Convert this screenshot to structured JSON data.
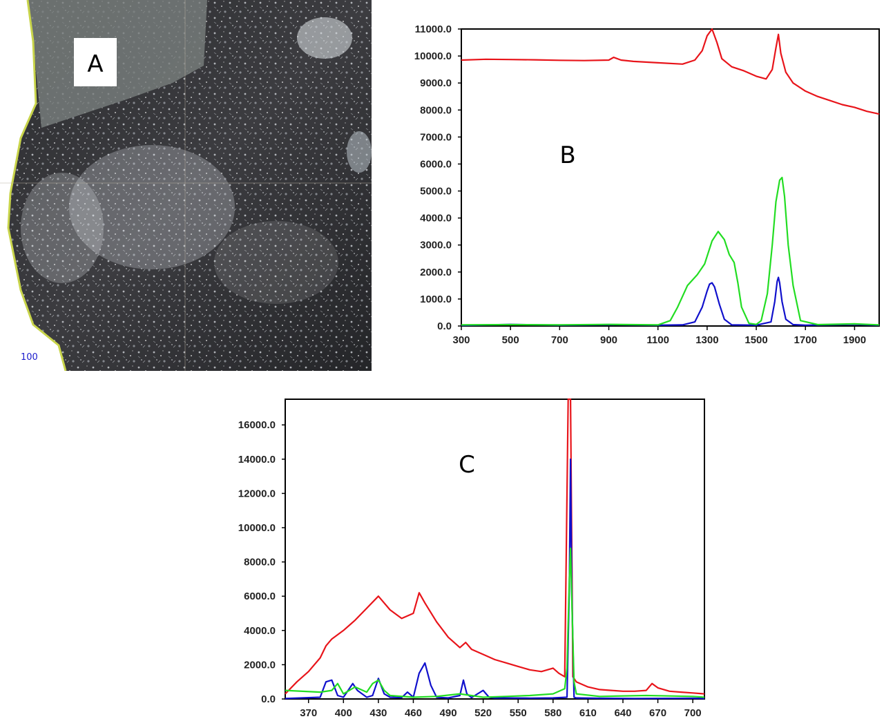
{
  "panels": {
    "photo": {
      "letter": "A",
      "scale_label": "100"
    },
    "spectrum_b": {
      "letter": "B"
    },
    "spectrum_c": {
      "letter": "C"
    }
  },
  "colors": {
    "series1": "#e8141a",
    "series2": "#1010cc",
    "series3": "#22dd22",
    "frame": "#000000"
  },
  "chart_data": [
    {
      "type": "line",
      "title": "",
      "xlabel": "",
      "ylabel": "",
      "xlim": [
        300,
        2000
      ],
      "ylim": [
        0,
        11000
      ],
      "x_ticks": [
        300,
        500,
        700,
        900,
        1100,
        1300,
        1500,
        1700,
        1900
      ],
      "y_ticks": [
        "0.0",
        "1000.0",
        "2000.0",
        "3000.0",
        "4000.0",
        "5000.0",
        "6000.0",
        "7000.0",
        "8000.0",
        "9000.0",
        "10000.0",
        "11000.0"
      ],
      "y_tick_values": [
        0,
        1000,
        2000,
        3000,
        4000,
        5000,
        6000,
        7000,
        8000,
        9000,
        10000,
        11000
      ],
      "series": [
        {
          "color": "#e8141a",
          "x": [
            300,
            400,
            500,
            600,
            700,
            800,
            900,
            920,
            950,
            1000,
            1100,
            1200,
            1250,
            1280,
            1300,
            1320,
            1340,
            1360,
            1400,
            1450,
            1500,
            1540,
            1565,
            1580,
            1590,
            1600,
            1620,
            1650,
            1700,
            1750,
            1800,
            1850,
            1900,
            1950,
            2000
          ],
          "y": [
            9850,
            9880,
            9870,
            9860,
            9840,
            9830,
            9850,
            9950,
            9850,
            9800,
            9750,
            9700,
            9850,
            10200,
            10750,
            11000,
            10500,
            9900,
            9600,
            9450,
            9250,
            9150,
            9500,
            10300,
            10800,
            10100,
            9400,
            9000,
            8700,
            8500,
            8350,
            8200,
            8100,
            7950,
            7850
          ]
        },
        {
          "color": "#1010cc",
          "x": [
            300,
            500,
            700,
            900,
            1100,
            1200,
            1250,
            1280,
            1300,
            1310,
            1320,
            1330,
            1350,
            1370,
            1400,
            1500,
            1560,
            1575,
            1585,
            1590,
            1595,
            1605,
            1620,
            1650,
            1700,
            1900,
            2000
          ],
          "y": [
            20,
            60,
            30,
            50,
            30,
            40,
            150,
            700,
            1300,
            1550,
            1600,
            1450,
            800,
            250,
            40,
            30,
            150,
            900,
            1650,
            1800,
            1600,
            900,
            250,
            50,
            30,
            60,
            30
          ]
        },
        {
          "color": "#22dd22",
          "x": [
            300,
            500,
            700,
            900,
            1100,
            1150,
            1180,
            1220,
            1260,
            1290,
            1320,
            1345,
            1370,
            1390,
            1410,
            1425,
            1440,
            1470,
            1500,
            1520,
            1545,
            1565,
            1580,
            1595,
            1605,
            1615,
            1630,
            1650,
            1680,
            1750,
            1900,
            2000
          ],
          "y": [
            40,
            50,
            40,
            60,
            40,
            200,
            700,
            1500,
            1900,
            2300,
            3150,
            3500,
            3200,
            2650,
            2350,
            1600,
            700,
            100,
            60,
            200,
            1200,
            3000,
            4600,
            5400,
            5500,
            4800,
            3000,
            1500,
            200,
            50,
            80,
            40
          ]
        }
      ]
    },
    {
      "type": "line",
      "title": "",
      "xlabel": "",
      "ylabel": "",
      "xlim": [
        350,
        710
      ],
      "ylim": [
        0,
        17500
      ],
      "x_ticks": [
        370,
        400,
        430,
        460,
        490,
        520,
        550,
        580,
        610,
        640,
        670,
        700
      ],
      "y_ticks": [
        "0.0",
        "2000.0",
        "4000.0",
        "6000.0",
        "8000.0",
        "10000.0",
        "12000.0",
        "14000.0",
        "16000.0"
      ],
      "y_tick_values": [
        0,
        2000,
        4000,
        6000,
        8000,
        10000,
        12000,
        14000,
        16000
      ],
      "series": [
        {
          "color": "#e8141a",
          "x": [
            350,
            360,
            370,
            380,
            385,
            390,
            400,
            410,
            420,
            430,
            440,
            450,
            460,
            465,
            470,
            480,
            490,
            500,
            505,
            510,
            520,
            530,
            540,
            550,
            560,
            570,
            580,
            585,
            590,
            593,
            595,
            597,
            600,
            610,
            620,
            630,
            640,
            650,
            660,
            665,
            670,
            680,
            690,
            700,
            710
          ],
          "y": [
            300,
            1000,
            1600,
            2400,
            3100,
            3500,
            4000,
            4600,
            5300,
            6000,
            5200,
            4700,
            5000,
            6200,
            5600,
            4500,
            3600,
            3000,
            3300,
            2900,
            2600,
            2300,
            2100,
            1900,
            1700,
            1600,
            1800,
            1500,
            1300,
            17500,
            17500,
            1300,
            1000,
            700,
            550,
            500,
            450,
            450,
            500,
            900,
            650,
            450,
            400,
            350,
            300
          ]
        },
        {
          "color": "#1010cc",
          "x": [
            350,
            380,
            385,
            390,
            395,
            400,
            408,
            412,
            420,
            425,
            430,
            435,
            440,
            450,
            455,
            460,
            465,
            470,
            475,
            480,
            490,
            500,
            503,
            506,
            510,
            520,
            525,
            530,
            560,
            580,
            592,
            594,
            595,
            596,
            598,
            600,
            620,
            650,
            700,
            710
          ],
          "y": [
            30,
            100,
            1000,
            1100,
            200,
            100,
            900,
            500,
            100,
            200,
            1200,
            300,
            100,
            80,
            400,
            100,
            1500,
            2100,
            800,
            100,
            60,
            200,
            1100,
            300,
            80,
            500,
            100,
            60,
            50,
            60,
            100,
            6600,
            14000,
            6600,
            100,
            60,
            40,
            30,
            40,
            30
          ]
        },
        {
          "color": "#22dd22",
          "x": [
            350,
            380,
            390,
            395,
            400,
            410,
            420,
            425,
            430,
            435,
            440,
            460,
            480,
            500,
            520,
            540,
            560,
            580,
            590,
            592,
            594,
            595,
            596,
            598,
            600,
            620,
            660,
            700,
            710
          ],
          "y": [
            500,
            400,
            500,
            900,
            300,
            700,
            400,
            900,
            1100,
            500,
            200,
            100,
            150,
            300,
            100,
            150,
            200,
            300,
            600,
            1800,
            7000,
            8800,
            6000,
            1000,
            300,
            150,
            200,
            150,
            100
          ]
        }
      ]
    }
  ]
}
